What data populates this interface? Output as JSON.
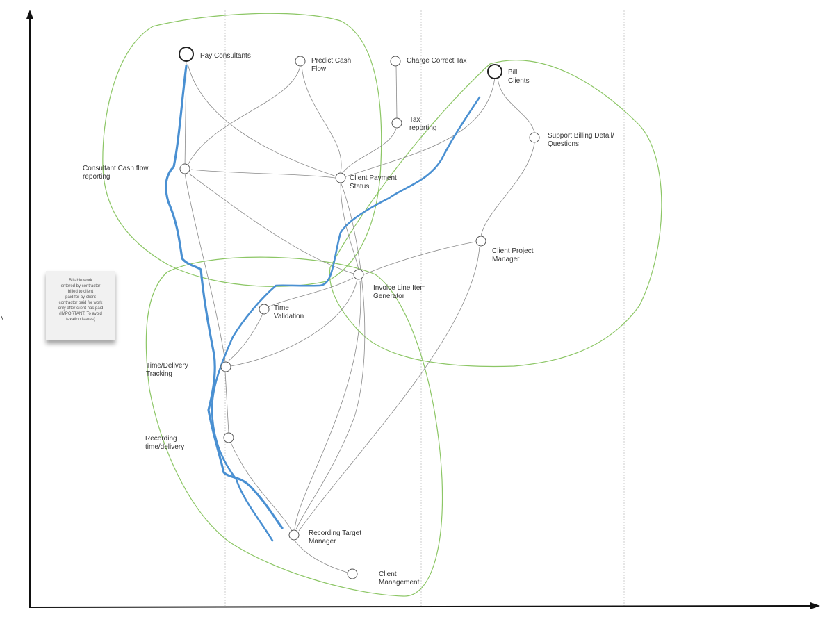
{
  "nodes": {
    "pay_consultants": "Pay Consultants",
    "predict_cash_flow": "Predict Cash\nFlow",
    "charge_correct_tax": "Charge Correct Tax",
    "bill_clients": "Bill\nClients",
    "tax_reporting": "Tax\nreporting",
    "support_billing": "Support Billing Detail/\nQuestions",
    "consultant_cash_flow": "Consultant Cash flow\nreporting",
    "client_payment_status": "Client Payment\nStatus",
    "client_project_manager": "Client Project\nManager",
    "invoice_line_item": "Invoice Line Item\nGenerator",
    "time_validation": "Time\nValidation",
    "time_delivery_tracking": "Time/Delivery\nTracking",
    "recording_time_delivery": "Recording\ntime/delivery",
    "recording_target_manager": "Recording Target\nManager",
    "client_management": "Client\nManagement"
  },
  "note": {
    "text": "Billable work\nentered by contractor\nbilled to client\npaid for by client\ncontractor paid for work\nonly after client has paid\n(IMPORTANT: To avoid\ntaxation issues)"
  },
  "colors": {
    "axis": "#111111",
    "connector": "#8a8a8a",
    "node_stroke": "#555555",
    "anchor_stroke": "#222222",
    "group_outline": "#8cc665",
    "flow_path": "#4a90d2",
    "phase_divider": "#cccccc",
    "note_background": "#f1f1f1"
  }
}
